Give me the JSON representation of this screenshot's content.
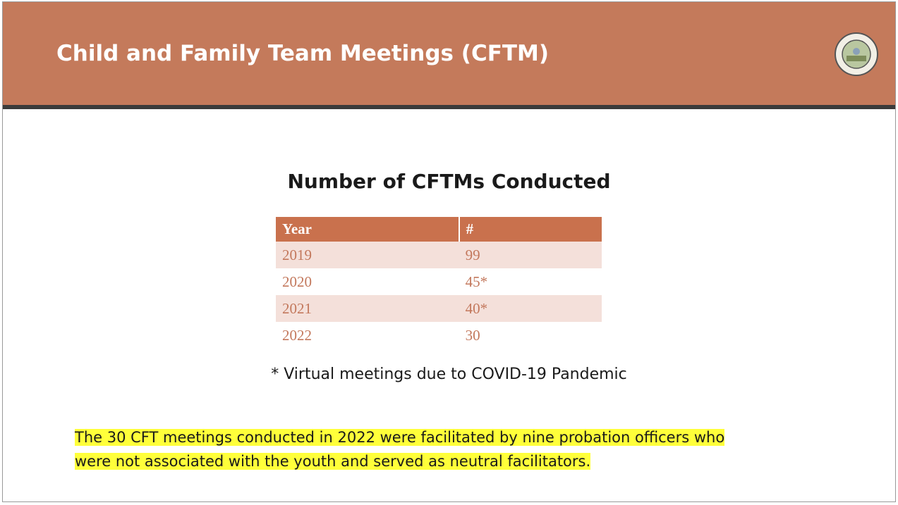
{
  "header": {
    "title": "Child and Family Team Meetings (CFTM)"
  },
  "table": {
    "title": "Number of CFTMs Conducted",
    "columns": [
      "Year",
      "#"
    ],
    "rows": [
      [
        2019,
        99
      ],
      [
        2020,
        "45*"
      ],
      [
        2021,
        "40*"
      ],
      [
        2022,
        30
      ]
    ],
    "footnote": "* Virtual meetings due to COVID-19 Pandemic"
  },
  "highlight": {
    "lines": [
      "The 30 CFT meetings conducted in 2022 were facilitated by nine probation officers who",
      "were not associated with the youth and served as neutral facilitators."
    ]
  }
}
